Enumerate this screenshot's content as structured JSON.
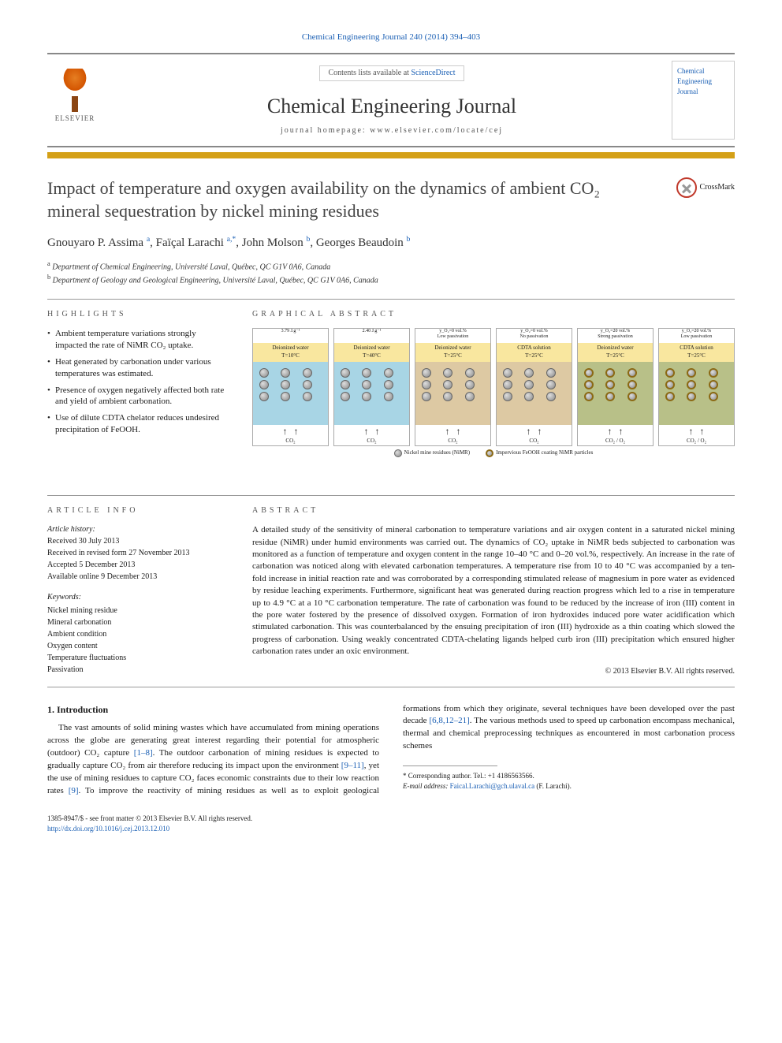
{
  "citation": "Chemical Engineering Journal 240 (2014) 394–403",
  "header": {
    "contents_prefix": "Contents lists available at ",
    "contents_link": "ScienceDirect",
    "journal_name": "Chemical Engineering Journal",
    "homepage_prefix": "journal homepage: ",
    "homepage_url": "www.elsevier.com/locate/cej",
    "elsevier_label": "ELSEVIER",
    "cover_line1": "Chemical",
    "cover_line2": "Engineering",
    "cover_line3": "Journal"
  },
  "title": "Impact of temperature and oxygen availability on the dynamics of ambient CO₂ mineral sequestration by nickel mining residues",
  "crossmark_label": "CrossMark",
  "authors_html": "Gnouyaro P. Assima <sup>a</sup>, Faïçal Larachi <sup>a,*</sup>, John Molson <sup>b</sup>, Georges Beaudoin <sup>b</sup>",
  "affiliations": [
    {
      "sup": "a",
      "text": "Department of Chemical Engineering, Université Laval, Québec, QC G1V 0A6, Canada"
    },
    {
      "sup": "b",
      "text": "Department of Geology and Geological Engineering, Université Laval, Québec, QC G1V 0A6, Canada"
    }
  ],
  "highlights": {
    "heading": "HIGHLIGHTS",
    "items": [
      "Ambient temperature variations strongly impacted the rate of NiMR CO₂ uptake.",
      "Heat generated by carbonation under various temperatures was estimated.",
      "Presence of oxygen negatively affected both rate and yield of ambient carbonation.",
      "Use of dilute CDTA chelator reduces undesired precipitation of FeOOH."
    ]
  },
  "graphical_abstract": {
    "heading": "GRAPHICAL ABSTRACT",
    "panels": [
      {
        "top_label": "3.79 J.g⁻¹",
        "header": "Deionized water\nT=10°C",
        "bg": "ga-bg-blue",
        "coated": false
      },
      {
        "top_label": "2.40 J.g⁻¹",
        "header": "Deionized water\nT=40°C",
        "bg": "ga-bg-blue",
        "coated": false
      },
      {
        "top_label": "y_O₂=0 vol.%\nLow passivation",
        "header": "Deionized water\nT=25°C",
        "bg": "ga-bg-tan",
        "coated": false
      },
      {
        "top_label": "y_O₂=0 vol.%\nNo passivation",
        "header": "CDTA solution\nT=25°C",
        "bg": "ga-bg-tan",
        "coated": false
      },
      {
        "top_label": "y_O₂=20 vol.%\nStrong passivation",
        "header": "Deionized water\nT=25°C",
        "bg": "ga-bg-olive",
        "coated": true
      },
      {
        "top_label": "y_O₂=20 vol.%\nLow passivation",
        "header": "CDTA solution\nT=25°C",
        "bg": "ga-bg-olive",
        "coated": true
      }
    ],
    "arrows_label_co2": "CO₂",
    "arrows_label_co2o2": "CO₂ / O₂",
    "legend_nimr": "Nickel mine residues (NiMR)",
    "legend_coated": "Impervious FeOOH coating NiMR particles",
    "colors": {
      "panel_blue": "#a8d5e5",
      "panel_tan": "#ddc9a3",
      "panel_olive": "#b8c088",
      "header_yellow": "#f9e79f",
      "particle_light": "#dddddd",
      "particle_dark": "#888888",
      "coating": "#8b6914"
    }
  },
  "article_info": {
    "heading": "ARTICLE INFO",
    "history_label": "Article history:",
    "history": [
      "Received 30 July 2013",
      "Received in revised form 27 November 2013",
      "Accepted 5 December 2013",
      "Available online 9 December 2013"
    ],
    "keywords_label": "Keywords:",
    "keywords": [
      "Nickel mining residue",
      "Mineral carbonation",
      "Ambient condition",
      "Oxygen content",
      "Temperature fluctuations",
      "Passivation"
    ]
  },
  "abstract": {
    "heading": "ABSTRACT",
    "text": "A detailed study of the sensitivity of mineral carbonation to temperature variations and air oxygen content in a saturated nickel mining residue (NiMR) under humid environments was carried out. The dynamics of CO₂ uptake in NiMR beds subjected to carbonation was monitored as a function of temperature and oxygen content in the range 10–40 °C and 0–20 vol.%, respectively. An increase in the rate of carbonation was noticed along with elevated carbonation temperatures. A temperature rise from 10 to 40 °C was accompanied by a ten-fold increase in initial reaction rate and was corroborated by a corresponding stimulated release of magnesium in pore water as evidenced by residue leaching experiments. Furthermore, significant heat was generated during reaction progress which led to a rise in temperature up to 4.9 °C at a 10 °C carbonation temperature. The rate of carbonation was found to be reduced by the increase of iron (III) content in the pore water fostered by the presence of dissolved oxygen. Formation of iron hydroxides induced pore water acidification which stimulated carbonation. This was counterbalanced by the ensuing precipitation of iron (III) hydroxide as a thin coating which slowed the progress of carbonation. Using weakly concentrated CDTA-chelating ligands helped curb iron (III) precipitation which ensured higher carbonation rates under an oxic environment.",
    "copyright": "© 2013 Elsevier B.V. All rights reserved."
  },
  "introduction": {
    "heading": "1. Introduction",
    "para1_pre": "The vast amounts of solid mining wastes which have accumulated from mining operations across the globe are generating great interest regarding their potential for atmospheric (outdoor) CO₂ capture ",
    "ref1": "[1–8]",
    "para1_post": ". The outdoor carbonation of mining residues is ",
    "para2_pre": "expected to gradually capture CO₂ from air therefore reducing its impact upon the environment ",
    "ref2": "[9–11]",
    "para2_mid1": ", yet the use of mining residues to capture CO₂ faces economic constraints due to their low reaction rates ",
    "ref3": "[9]",
    "para2_mid2": ". To improve the reactivity of mining residues as well as to exploit geological formations from which they originate, several techniques have been developed over the past decade ",
    "ref4": "[6,8,12–21]",
    "para2_post": ". The various methods used to speed up carbonation encompass mechanical, thermal and chemical preprocessing techniques as encountered in most carbonation process schemes"
  },
  "footnote": {
    "corresponding": "* Corresponding author. Tel.: +1 4186563566.",
    "email_label": "E-mail address: ",
    "email": "Faical.Larachi@gch.ulaval.ca",
    "email_suffix": " (F. Larachi)."
  },
  "footer": {
    "issn": "1385-8947/$ - see front matter © 2013 Elsevier B.V. All rights reserved.",
    "doi_label": "http://dx.doi.org/",
    "doi": "10.1016/j.cej.2013.12.010"
  },
  "colors": {
    "link": "#1a5fb4",
    "accent_bar": "#d4a017",
    "text": "#1a1a1a",
    "heading_grey": "#555555",
    "border_grey": "#999999"
  }
}
